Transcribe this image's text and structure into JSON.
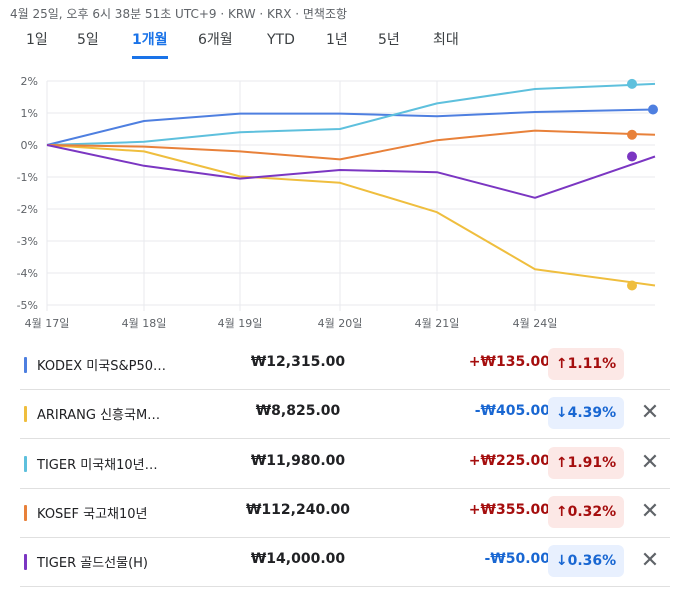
{
  "timestamp": "4월 25일, 오후 6시 38분 51초 UTC+9 · KRW · KRX · 면책조항",
  "tabs": [
    {
      "label": "1일"
    },
    {
      "label": "5일"
    },
    {
      "label": "1개월"
    },
    {
      "label": "6개월"
    },
    {
      "label": "YTD"
    },
    {
      "label": "1년"
    },
    {
      "label": "5년"
    },
    {
      "label": "최대"
    }
  ],
  "active_tab": "1개월",
  "chart_data": {
    "type": "line",
    "categories": [
      "4월 17일",
      "4월 18일",
      "4월 19일",
      "4월 20일",
      "4월 21일",
      "4월 24일",
      "4월 25일"
    ],
    "x_tick_labels": [
      "4월 17일",
      "4월 18일",
      "4월 19일",
      "4월 20일",
      "4월 21일",
      "4월 24일"
    ],
    "y_tick_labels": [
      "2%",
      "1%",
      "0%",
      "-1%",
      "-2%",
      "-3%",
      "-4%",
      "-5%"
    ],
    "ylim": [
      -5,
      2
    ],
    "grid": true,
    "series": [
      {
        "name": "KODEX 미국S&P50…",
        "color": "#4e7fe0",
        "values": [
          0,
          0.75,
          0.98,
          0.98,
          0.9,
          1.03,
          1.11
        ]
      },
      {
        "name": "ARIRANG 신흥국M…",
        "color": "#efbe3e",
        "values": [
          0,
          -0.2,
          -0.98,
          -1.18,
          -2.1,
          -3.88,
          -4.39
        ]
      },
      {
        "name": "TIGER 미국채10년…",
        "color": "#5ec0dd",
        "values": [
          0,
          0.1,
          0.4,
          0.5,
          1.3,
          1.75,
          1.91
        ]
      },
      {
        "name": "KOSEF 국고채10년",
        "color": "#e8813a",
        "values": [
          0,
          -0.05,
          -0.2,
          -0.45,
          0.15,
          0.45,
          0.32
        ]
      },
      {
        "name": "TIGER 골드선물(H)",
        "color": "#7b36c2",
        "values": [
          0,
          -0.65,
          -1.05,
          -0.78,
          -0.85,
          -1.65,
          -0.36
        ]
      }
    ]
  },
  "holdings": [
    {
      "name": "KODEX 미국S&P50…",
      "price": "₩12,315.00",
      "change": "+₩135.00",
      "percent": "↑1.11%",
      "direction": "up",
      "color": "#4e7fe0",
      "removable": false
    },
    {
      "name": "ARIRANG 신흥국M…",
      "price": "₩8,825.00",
      "change": "-₩405.00",
      "percent": "↓4.39%",
      "direction": "down",
      "color": "#efbe3e",
      "removable": true,
      "close": "✕"
    },
    {
      "name": "TIGER 미국채10년…",
      "price": "₩11,980.00",
      "change": "+₩225.00",
      "percent": "↑1.91%",
      "direction": "up",
      "color": "#5ec0dd",
      "removable": true,
      "close": "✕"
    },
    {
      "name": "KOSEF 국고채10년",
      "price": "₩112,240.00",
      "change": "+₩355.00",
      "percent": "↑0.32%",
      "direction": "up",
      "color": "#e8813a",
      "removable": true,
      "close": "✕"
    },
    {
      "name": "TIGER 골드선물(H)",
      "price": "₩14,000.00",
      "change": "-₩50.00",
      "percent": "↓0.36%",
      "direction": "down",
      "color": "#7b36c2",
      "removable": true,
      "close": "✕"
    }
  ]
}
